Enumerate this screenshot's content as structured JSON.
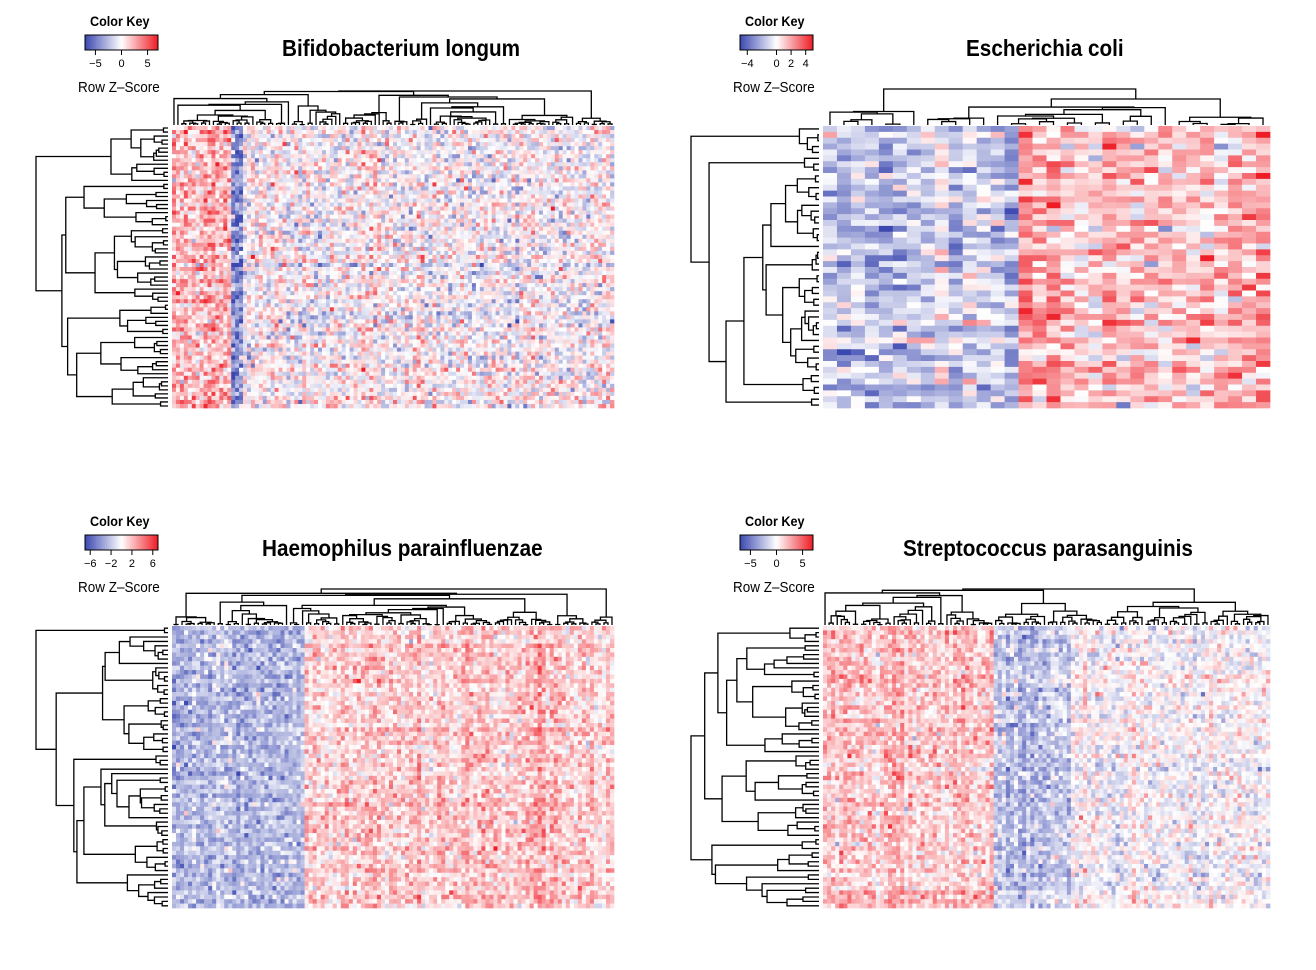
{
  "colors": {
    "low": "#3b48b0",
    "mid": "#ffffff",
    "high": "#ee1c25",
    "line": "#000000"
  },
  "chart_data": [
    {
      "type": "heatmap",
      "title": "Bifidobacterium longum",
      "color_key": {
        "title": "Color Key",
        "label": "Row Z–Score",
        "ticks": [
          -5,
          0,
          5
        ],
        "range": [
          -7,
          7
        ]
      },
      "n_rows": 70,
      "n_cols": 112,
      "column_groups": [
        {
          "fraction": 0.13,
          "mean": 2.2
        },
        {
          "fraction": 0.03,
          "mean": -4.0
        },
        {
          "fraction": 0.84,
          "mean": 0.0
        }
      ],
      "noise": 1.8
    },
    {
      "type": "heatmap",
      "title": "Escherichia coli",
      "color_key": {
        "title": "Color Key",
        "label": "Row Z–Score",
        "ticks": [
          -4,
          0,
          2,
          4
        ],
        "range": [
          -5,
          5
        ]
      },
      "n_rows": 48,
      "n_cols": 32,
      "column_groups": [
        {
          "fraction": 0.44,
          "mean": -1.4
        },
        {
          "fraction": 0.56,
          "mean": 1.3
        }
      ],
      "noise": 1.2
    },
    {
      "type": "heatmap",
      "title": "Haemophilus parainfluenzae",
      "color_key": {
        "title": "Color Key",
        "label": "Row Z–Score",
        "ticks": [
          -6,
          -2,
          2,
          6
        ],
        "range": [
          -7,
          7
        ]
      },
      "n_rows": 64,
      "n_cols": 110,
      "column_groups": [
        {
          "fraction": 0.3,
          "mean": -2.6
        },
        {
          "fraction": 0.7,
          "mean": 1.6
        }
      ],
      "noise": 1.3
    },
    {
      "type": "heatmap",
      "title": "Streptococcus parasanguinis",
      "color_key": {
        "title": "Color Key",
        "label": "Row Z–Score",
        "ticks": [
          -5,
          0,
          5
        ],
        "range": [
          -7,
          7
        ]
      },
      "n_rows": 64,
      "n_cols": 110,
      "column_groups": [
        {
          "fraction": 0.38,
          "mean": 1.6
        },
        {
          "fraction": 0.17,
          "mean": -2.4
        },
        {
          "fraction": 0.45,
          "mean": -0.4
        }
      ],
      "noise": 1.3
    }
  ]
}
